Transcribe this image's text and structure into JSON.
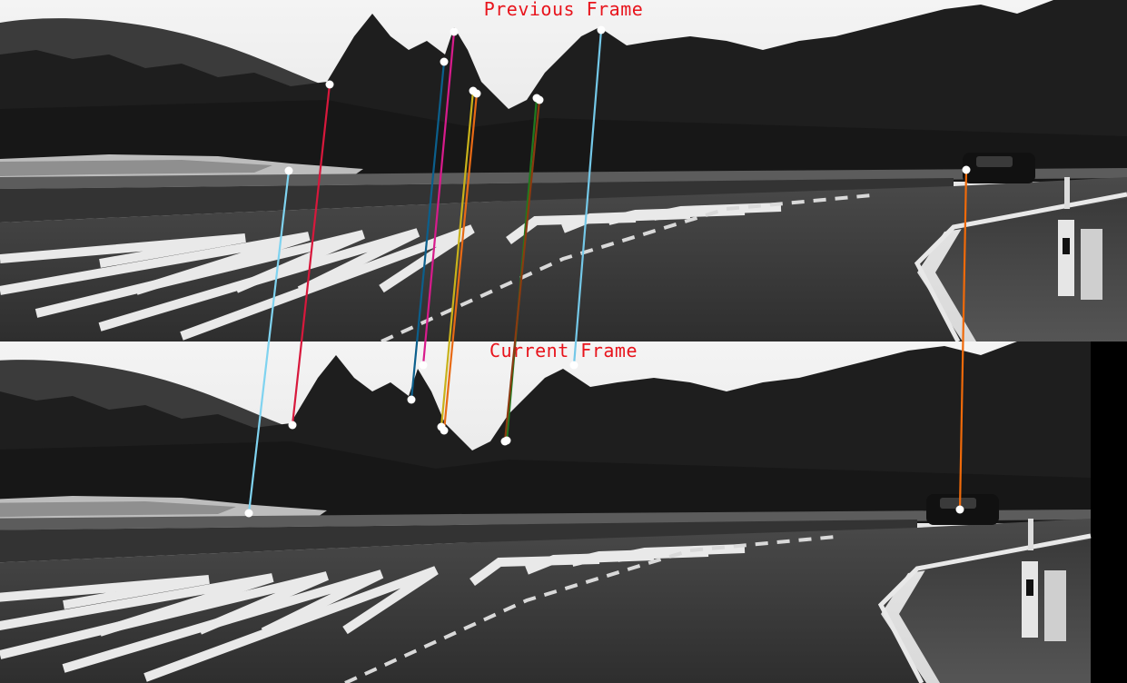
{
  "frames": {
    "previous": {
      "title": "Previous Frame"
    },
    "current": {
      "title": "Current Frame"
    }
  },
  "colors": {
    "title_text": "#e8141c",
    "keypoint": "#ffffff",
    "match_palette": [
      "#7fd3f0",
      "#d8183c",
      "#0b5f8c",
      "#d81b8c",
      "#c9b21a",
      "#e86a14",
      "#1f7a1f",
      "#8a3a10",
      "#74c8e8",
      "#f06a0a"
    ]
  },
  "matches": [
    {
      "id": "m1",
      "color": "#7fd3f0",
      "prev": [
        318,
        188
      ],
      "curr": [
        274,
        565
      ]
    },
    {
      "id": "m2",
      "color": "#d8183c",
      "prev": [
        363,
        93
      ],
      "curr": [
        322,
        468
      ]
    },
    {
      "id": "m3",
      "color": "#0b5f8c",
      "prev": [
        489,
        68
      ],
      "curr": [
        453,
        440
      ]
    },
    {
      "id": "m4",
      "color": "#d81b8c",
      "prev": [
        500,
        35
      ],
      "curr": [
        466,
        402
      ]
    },
    {
      "id": "m5",
      "color": "#c9b21a",
      "prev": [
        521,
        100
      ],
      "curr": [
        486,
        470
      ]
    },
    {
      "id": "m6",
      "color": "#e86a14",
      "prev": [
        525,
        103
      ],
      "curr": [
        489,
        474
      ]
    },
    {
      "id": "m7",
      "color": "#1f7a1f",
      "prev": [
        591,
        108
      ],
      "curr": [
        558,
        485
      ]
    },
    {
      "id": "m8",
      "color": "#8a3a10",
      "prev": [
        594,
        110
      ],
      "curr": [
        556,
        486
      ]
    },
    {
      "id": "m9",
      "color": "#74c8e8",
      "prev": [
        662,
        33
      ],
      "curr": [
        632,
        402
      ]
    },
    {
      "id": "m10",
      "color": "#f06a0a",
      "prev": [
        1064,
        187
      ],
      "curr": [
        1057,
        561
      ]
    }
  ]
}
